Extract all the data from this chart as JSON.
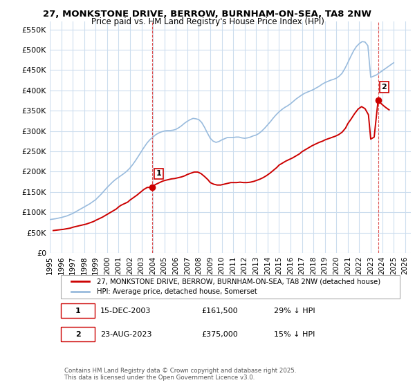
{
  "title": "27, MONKSTONE DRIVE, BERROW, BURNHAM-ON-SEA, TA8 2NW",
  "subtitle": "Price paid vs. HM Land Registry's House Price Index (HPI)",
  "ylabel": "",
  "xlabel": "",
  "ylim": [
    0,
    570000
  ],
  "yticks": [
    0,
    50000,
    100000,
    150000,
    200000,
    250000,
    300000,
    350000,
    400000,
    450000,
    500000,
    550000
  ],
  "ytick_labels": [
    "£0",
    "£50K",
    "£100K",
    "£150K",
    "£200K",
    "£250K",
    "£300K",
    "£350K",
    "£400K",
    "£450K",
    "£500K",
    "£550K"
  ],
  "xlim_start": 1995.0,
  "xlim_end": 2026.5,
  "xtick_years": [
    1995,
    1996,
    1997,
    1998,
    1999,
    2000,
    2001,
    2002,
    2003,
    2004,
    2005,
    2006,
    2007,
    2008,
    2009,
    2010,
    2011,
    2012,
    2013,
    2014,
    2015,
    2016,
    2017,
    2018,
    2019,
    2020,
    2021,
    2022,
    2023,
    2024,
    2025,
    2026
  ],
  "background_color": "#ffffff",
  "plot_bg_color": "#ffffff",
  "grid_color": "#ccddee",
  "red_color": "#cc0000",
  "blue_color": "#99bbdd",
  "transaction1_x": 2003.96,
  "transaction1_y": 161500,
  "transaction1_label": "1",
  "transaction2_x": 2023.64,
  "transaction2_y": 375000,
  "transaction2_label": "2",
  "legend_line1": "27, MONKSTONE DRIVE, BERROW, BURNHAM-ON-SEA, TA8 2NW (detached house)",
  "legend_line2": "HPI: Average price, detached house, Somerset",
  "table_row1": "1    15-DEC-2003    £161,500    29% ↓ HPI",
  "table_row2": "2    23-AUG-2023    £375,000    15% ↓ HPI",
  "footer": "Contains HM Land Registry data © Crown copyright and database right 2025.\nThis data is licensed under the Open Government Licence v3.0.",
  "hpi_x": [
    1995.0,
    1995.25,
    1995.5,
    1995.75,
    1996.0,
    1996.25,
    1996.5,
    1996.75,
    1997.0,
    1997.25,
    1997.5,
    1997.75,
    1998.0,
    1998.25,
    1998.5,
    1998.75,
    1999.0,
    1999.25,
    1999.5,
    1999.75,
    2000.0,
    2000.25,
    2000.5,
    2000.75,
    2001.0,
    2001.25,
    2001.5,
    2001.75,
    2002.0,
    2002.25,
    2002.5,
    2002.75,
    2003.0,
    2003.25,
    2003.5,
    2003.75,
    2004.0,
    2004.25,
    2004.5,
    2004.75,
    2005.0,
    2005.25,
    2005.5,
    2005.75,
    2006.0,
    2006.25,
    2006.5,
    2006.75,
    2007.0,
    2007.25,
    2007.5,
    2007.75,
    2008.0,
    2008.25,
    2008.5,
    2008.75,
    2009.0,
    2009.25,
    2009.5,
    2009.75,
    2010.0,
    2010.25,
    2010.5,
    2010.75,
    2011.0,
    2011.25,
    2011.5,
    2011.75,
    2012.0,
    2012.25,
    2012.5,
    2012.75,
    2013.0,
    2013.25,
    2013.5,
    2013.75,
    2014.0,
    2014.25,
    2014.5,
    2014.75,
    2015.0,
    2015.25,
    2015.5,
    2015.75,
    2016.0,
    2016.25,
    2016.5,
    2016.75,
    2017.0,
    2017.25,
    2017.5,
    2017.75,
    2018.0,
    2018.25,
    2018.5,
    2018.75,
    2019.0,
    2019.25,
    2019.5,
    2019.75,
    2020.0,
    2020.25,
    2020.5,
    2020.75,
    2021.0,
    2021.25,
    2021.5,
    2021.75,
    2022.0,
    2022.25,
    2022.5,
    2022.75,
    2023.0,
    2023.25,
    2023.5,
    2023.75,
    2024.0,
    2024.25,
    2024.5,
    2024.75,
    2025.0
  ],
  "hpi_y": [
    82000,
    83000,
    84000,
    85500,
    87000,
    89000,
    91000,
    94000,
    97000,
    101000,
    105000,
    109000,
    113000,
    117000,
    121000,
    126000,
    131000,
    138000,
    145000,
    153000,
    161000,
    168000,
    175000,
    181000,
    186000,
    191000,
    196000,
    202000,
    209000,
    218000,
    228000,
    239000,
    250000,
    261000,
    271000,
    279000,
    285000,
    291000,
    295000,
    298000,
    300000,
    301000,
    301000,
    302000,
    304000,
    308000,
    313000,
    319000,
    324000,
    328000,
    331000,
    330000,
    328000,
    321000,
    309000,
    295000,
    282000,
    275000,
    272000,
    274000,
    278000,
    281000,
    284000,
    284000,
    284000,
    285000,
    285000,
    283000,
    282000,
    283000,
    285000,
    288000,
    290000,
    294000,
    300000,
    307000,
    315000,
    323000,
    332000,
    340000,
    347000,
    353000,
    358000,
    362000,
    367000,
    373000,
    379000,
    384000,
    389000,
    393000,
    396000,
    399000,
    402000,
    406000,
    410000,
    415000,
    419000,
    422000,
    425000,
    427000,
    430000,
    435000,
    442000,
    454000,
    468000,
    483000,
    497000,
    508000,
    515000,
    520000,
    519000,
    510000,
    432000,
    435000,
    438000,
    443000,
    448000,
    453000,
    458000,
    463000,
    468000
  ],
  "price_x": [
    1995.3,
    1995.6,
    1995.9,
    1996.2,
    1996.5,
    1996.8,
    1997.0,
    1997.3,
    1997.6,
    1997.9,
    1998.2,
    1998.5,
    1998.8,
    1999.0,
    1999.3,
    1999.6,
    1999.9,
    2000.2,
    2000.5,
    2000.8,
    2001.0,
    2001.2,
    2001.5,
    2001.8,
    2002.0,
    2002.3,
    2002.6,
    2002.9,
    2003.2,
    2003.5,
    2003.96,
    2004.2,
    2004.5,
    2004.8,
    2005.0,
    2005.3,
    2005.6,
    2005.9,
    2006.2,
    2006.5,
    2006.8,
    2007.0,
    2007.3,
    2007.6,
    2007.9,
    2008.2,
    2008.5,
    2008.8,
    2009.0,
    2009.3,
    2009.6,
    2009.9,
    2010.2,
    2010.5,
    2010.8,
    2011.0,
    2011.3,
    2011.6,
    2011.9,
    2012.2,
    2012.5,
    2012.8,
    2013.0,
    2013.3,
    2013.6,
    2013.9,
    2014.2,
    2014.5,
    2014.8,
    2015.0,
    2015.3,
    2015.6,
    2015.9,
    2016.2,
    2016.5,
    2016.8,
    2017.0,
    2017.3,
    2017.6,
    2017.9,
    2018.2,
    2018.5,
    2018.8,
    2019.0,
    2019.3,
    2019.6,
    2019.9,
    2020.2,
    2020.5,
    2020.8,
    2021.0,
    2021.3,
    2021.6,
    2021.9,
    2022.2,
    2022.5,
    2022.8,
    2023.0,
    2023.3,
    2023.64,
    2024.0,
    2024.3,
    2024.6
  ],
  "price_y": [
    55000,
    56000,
    57000,
    58000,
    59500,
    61000,
    63000,
    65000,
    67000,
    69000,
    71000,
    74000,
    77000,
    80000,
    84000,
    88000,
    93000,
    98000,
    103000,
    108000,
    113000,
    117000,
    121000,
    125000,
    130000,
    136000,
    142000,
    149000,
    156000,
    161000,
    161500,
    168000,
    172000,
    176000,
    178000,
    180000,
    182000,
    183000,
    185000,
    187000,
    190000,
    193000,
    196000,
    199000,
    199000,
    195000,
    188000,
    180000,
    173000,
    169000,
    167000,
    167000,
    169000,
    171000,
    173000,
    173000,
    173000,
    174000,
    173000,
    173000,
    174000,
    176000,
    178000,
    181000,
    185000,
    190000,
    196000,
    203000,
    210000,
    216000,
    221000,
    226000,
    230000,
    234000,
    239000,
    244000,
    249000,
    254000,
    259000,
    264000,
    268000,
    272000,
    275000,
    278000,
    281000,
    284000,
    287000,
    291000,
    297000,
    307000,
    318000,
    330000,
    343000,
    354000,
    360000,
    355000,
    340000,
    280000,
    285000,
    375000,
    365000,
    358000,
    352000
  ]
}
